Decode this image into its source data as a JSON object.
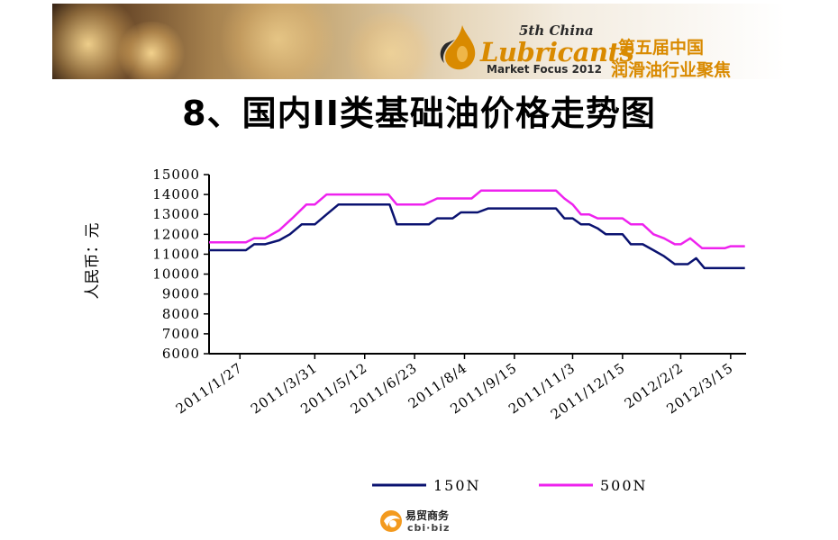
{
  "header": {
    "logo_line1": "5th China",
    "logo_line2": "Lubricants",
    "logo_line3": "Market Focus 2012",
    "cn_line1": "第五届中国",
    "cn_line2": "润滑油行业聚焦"
  },
  "title": "8、国内II类基础油价格走势图",
  "footer": {
    "cn": "易贸商务",
    "en": "cbi·biz"
  },
  "colors": {
    "series_150N": "#0a1270",
    "series_500N": "#ee22ee",
    "accent": "#d98a00"
  },
  "chart_data": {
    "type": "line",
    "ylabel": "人民币：元",
    "ylim": [
      6000,
      15000
    ],
    "yticks": [
      6000,
      7000,
      8000,
      9000,
      10000,
      11000,
      12000,
      13000,
      14000,
      15000
    ],
    "xtick_labels": [
      "2011/1/27",
      "2011/3/31",
      "2011/5/12",
      "2011/6/23",
      "2011/8/4",
      "2011/9/15",
      "2011/11/3",
      "2011/12/15",
      "2012/2/2",
      "2012/3/15"
    ],
    "x_range": [
      "2011-01-01",
      "2012-03-28"
    ],
    "xtick_dates": [
      "2011-01-27",
      "2011-03-31",
      "2011-05-12",
      "2011-06-23",
      "2011-08-04",
      "2011-09-15",
      "2011-11-03",
      "2011-12-15",
      "2012-02-02",
      "2012-03-15"
    ],
    "legend_position": "bottom",
    "grid": false,
    "series": [
      {
        "name": "150N",
        "points": [
          [
            "2011-01-01",
            11200
          ],
          [
            "2011-01-15",
            11200
          ],
          [
            "2011-02-01",
            11200
          ],
          [
            "2011-02-08",
            11500
          ],
          [
            "2011-02-17",
            11500
          ],
          [
            "2011-03-01",
            11700
          ],
          [
            "2011-03-10",
            12000
          ],
          [
            "2011-03-20",
            12500
          ],
          [
            "2011-03-31",
            12500
          ],
          [
            "2011-04-10",
            13000
          ],
          [
            "2011-04-20",
            13500
          ],
          [
            "2011-05-01",
            13500
          ],
          [
            "2011-05-12",
            13500
          ],
          [
            "2011-05-25",
            13500
          ],
          [
            "2011-06-02",
            13500
          ],
          [
            "2011-06-08",
            12500
          ],
          [
            "2011-06-23",
            12500
          ],
          [
            "2011-07-05",
            12500
          ],
          [
            "2011-07-12",
            12800
          ],
          [
            "2011-07-25",
            12800
          ],
          [
            "2011-08-01",
            13100
          ],
          [
            "2011-08-15",
            13100
          ],
          [
            "2011-08-24",
            13300
          ],
          [
            "2011-09-15",
            13300
          ],
          [
            "2011-10-01",
            13300
          ],
          [
            "2011-10-20",
            13300
          ],
          [
            "2011-10-27",
            12800
          ],
          [
            "2011-11-03",
            12800
          ],
          [
            "2011-11-10",
            12500
          ],
          [
            "2011-11-17",
            12500
          ],
          [
            "2011-11-24",
            12300
          ],
          [
            "2011-12-01",
            12000
          ],
          [
            "2011-12-15",
            12000
          ],
          [
            "2011-12-22",
            11500
          ],
          [
            "2012-01-01",
            11500
          ],
          [
            "2012-01-10",
            11200
          ],
          [
            "2012-01-19",
            10900
          ],
          [
            "2012-01-28",
            10500
          ],
          [
            "2012-02-08",
            10500
          ],
          [
            "2012-02-15",
            10800
          ],
          [
            "2012-02-22",
            10300
          ],
          [
            "2012-03-01",
            10300
          ],
          [
            "2012-03-15",
            10300
          ],
          [
            "2012-03-27",
            10300
          ]
        ]
      },
      {
        "name": "500N",
        "points": [
          [
            "2011-01-01",
            11600
          ],
          [
            "2011-01-20",
            11600
          ],
          [
            "2011-02-01",
            11600
          ],
          [
            "2011-02-08",
            11800
          ],
          [
            "2011-02-17",
            11800
          ],
          [
            "2011-03-01",
            12200
          ],
          [
            "2011-03-12",
            12800
          ],
          [
            "2011-03-24",
            13500
          ],
          [
            "2011-03-31",
            13500
          ],
          [
            "2011-04-10",
            14000
          ],
          [
            "2011-04-25",
            14000
          ],
          [
            "2011-05-12",
            14000
          ],
          [
            "2011-06-01",
            14000
          ],
          [
            "2011-06-08",
            13500
          ],
          [
            "2011-06-23",
            13500
          ],
          [
            "2011-07-01",
            13500
          ],
          [
            "2011-07-12",
            13800
          ],
          [
            "2011-07-28",
            13800
          ],
          [
            "2011-08-10",
            13800
          ],
          [
            "2011-08-18",
            14200
          ],
          [
            "2011-09-01",
            14200
          ],
          [
            "2011-09-15",
            14200
          ],
          [
            "2011-10-10",
            14200
          ],
          [
            "2011-10-20",
            14200
          ],
          [
            "2011-10-27",
            13800
          ],
          [
            "2011-11-03",
            13500
          ],
          [
            "2011-11-10",
            13000
          ],
          [
            "2011-11-17",
            13000
          ],
          [
            "2011-11-24",
            12800
          ],
          [
            "2011-12-01",
            12800
          ],
          [
            "2011-12-15",
            12800
          ],
          [
            "2011-12-22",
            12500
          ],
          [
            "2012-01-01",
            12500
          ],
          [
            "2012-01-10",
            12000
          ],
          [
            "2012-01-19",
            11800
          ],
          [
            "2012-01-28",
            11500
          ],
          [
            "2012-02-02",
            11500
          ],
          [
            "2012-02-10",
            11800
          ],
          [
            "2012-02-20",
            11300
          ],
          [
            "2012-03-01",
            11300
          ],
          [
            "2012-03-10",
            11300
          ],
          [
            "2012-03-15",
            11400
          ],
          [
            "2012-03-27",
            11400
          ]
        ]
      }
    ]
  }
}
